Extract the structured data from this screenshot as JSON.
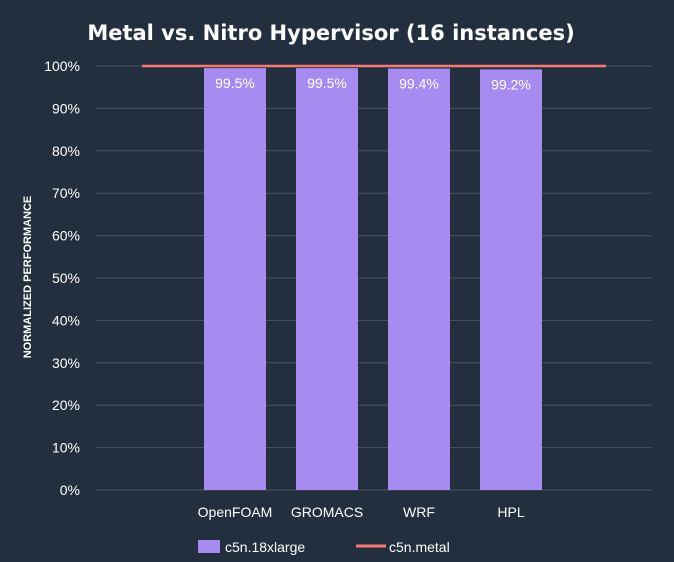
{
  "chart_data": {
    "type": "bar",
    "title": "Metal vs. Nitro Hypervisor (16 instances)",
    "ylabel": "NORMALIZED PERFORMANCE",
    "xlabel": "",
    "categories": [
      "OpenFOAM",
      "GROMACS",
      "WRF",
      "HPL"
    ],
    "series": [
      {
        "name": "c5n.18xlarge",
        "type": "bar",
        "values": [
          99.5,
          99.5,
          99.4,
          99.2
        ],
        "labels": [
          "99.5%",
          "99.5%",
          "99.4%",
          "99.2%"
        ]
      },
      {
        "name": "c5n.metal",
        "type": "line",
        "values": [
          100,
          100,
          100,
          100
        ]
      }
    ],
    "ylim": [
      0,
      100
    ],
    "yticks": [
      0,
      10,
      20,
      30,
      40,
      50,
      60,
      70,
      80,
      90,
      100
    ],
    "ytick_labels": [
      "0%",
      "10%",
      "20%",
      "30%",
      "40%",
      "50%",
      "60%",
      "70%",
      "80%",
      "90%",
      "100%"
    ],
    "grid": true,
    "legend": "bottom",
    "colors": {
      "background": "#232f3e",
      "bar": "#a78bf0",
      "line": "#f47b72",
      "grid": "#4a5563"
    }
  }
}
